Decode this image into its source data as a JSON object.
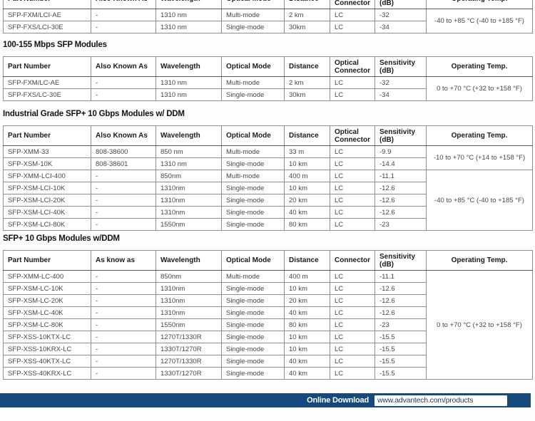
{
  "columns": {
    "widths": [
      123,
      91,
      92,
      88,
      64,
      63,
      72,
      149
    ]
  },
  "sections": [
    {
      "heading": null,
      "headers": [
        "Part Number",
        "Also Known As",
        "Wavelength",
        "Optical Mode",
        "Distance",
        "Optical\nConnector",
        "Sensitivity\n(dB)",
        "Operating Temp."
      ],
      "rows": [
        {
          "cells": [
            "SFP-FXM/LCI-AE",
            "-",
            "1310 nm",
            "Multi-mode",
            "2 km",
            "LC",
            "-32"
          ],
          "temp": "-40 to +85 °C (-40 to +185 °F)",
          "temp_span": 2
        },
        {
          "cells": [
            "SFP-FXS/LCI-30E",
            "-",
            "1310 nm",
            "Single-mode",
            "30km",
            "LC",
            "-34"
          ]
        }
      ]
    },
    {
      "heading": "100-155 Mbps SFP Modules",
      "headers": [
        "Part Number",
        "Also Known As",
        "Wavelength",
        "Optical Mode",
        "Distance",
        "Optical\nConnector",
        "Sensitivity\n(dB)",
        "Operating Temp."
      ],
      "rows": [
        {
          "cells": [
            "SFP-FXM/LC-AE",
            "-",
            "1310 nm",
            "Multi-mode",
            "2 km",
            "LC",
            "-32"
          ],
          "temp": "0 to +70 °C (+32 to +158 °F)",
          "temp_span": 2
        },
        {
          "cells": [
            "SFP-FXS/LC-30E",
            "-",
            "1310 nm",
            "Single-mode",
            "30km",
            "LC",
            "-34"
          ]
        }
      ]
    },
    {
      "heading": "Industrial Grade SFP+ 10 Gbps Modules w/ DDM",
      "headers": [
        "Part Number",
        "Also Known As",
        "Wavelength",
        "Optical Mode",
        "Distance",
        "Optical\nConnector",
        "Sensitivity\n(dB)",
        "Operating Temp."
      ],
      "rows": [
        {
          "cells": [
            "SFP-XMM-33",
            "808-38600",
            "850 nm",
            "Multi-mode",
            "33 m",
            "LC",
            "-9.9"
          ],
          "temp": "-10 to +70 °C (+14 to +158 °F)",
          "temp_span": 2
        },
        {
          "cells": [
            "SFP-XSM-10K",
            "808-38601",
            "1310 nm",
            "Single-mode",
            "10 km",
            "LC",
            "-14.4"
          ]
        },
        {
          "cells": [
            "SFP-XMM-LCI-400",
            "-",
            "850nm",
            "Multi-mode",
            "400 m",
            "LC",
            "-11.1"
          ],
          "temp": "-40 to +85 °C (-40 to +185 °F)",
          "temp_span": 5
        },
        {
          "cells": [
            "SFP-XSM-LCI-10K",
            "-",
            "1310nm",
            "Single-mode",
            "10 km",
            "LC",
            "-12.6"
          ]
        },
        {
          "cells": [
            "SFP-XSM-LCI-20K",
            "-",
            "1310nm",
            "Single-mode",
            "20 km",
            "LC",
            "-12.6"
          ]
        },
        {
          "cells": [
            "SFP-XSM-LCI-40K",
            "-",
            "1310nm",
            "Single-mode",
            "40 km",
            "LC",
            "-12.6"
          ]
        },
        {
          "cells": [
            "SFP-XSM-LCI-80K",
            "-",
            "1550nm",
            "Single-mode",
            "80 km",
            "LC",
            "-23"
          ]
        }
      ]
    },
    {
      "heading": "SFP+ 10 Gbps Modules w/DDM",
      "headers": [
        "Part Number",
        "As know as",
        "Wavelength",
        "Optical Mode",
        "Distance",
        "Connector",
        "Sensitivity\n(dB)",
        "Operating Temp."
      ],
      "rows": [
        {
          "cells": [
            "SFP-XMM-LC-400",
            "-",
            "850nm",
            "Multi-mode",
            "400 m",
            "LC",
            "-11.1"
          ],
          "temp": "0 to +70 °C (+32 to +158 °F)",
          "temp_span": 9
        },
        {
          "cells": [
            "SFP-XSM-LC-10K",
            "-",
            "1310nm",
            "Single-mode",
            "10 km",
            "LC",
            "-12.6"
          ]
        },
        {
          "cells": [
            "SFP-XSM-LC-20K",
            "-",
            "1310nm",
            "Single-mode",
            "20 km",
            "LC",
            "-12.6"
          ]
        },
        {
          "cells": [
            "SFP-XSM-LC-40K",
            "-",
            "1310nm",
            "Single-mode",
            "40 km",
            "LC",
            "-12.6"
          ]
        },
        {
          "cells": [
            "SFP-XSM-LC-80K",
            "-",
            "1550nm",
            "Single-mode",
            "80 km",
            "LC",
            "-23"
          ]
        },
        {
          "cells": [
            "SFP-XSS-10KTX-LC",
            "-",
            "1270T/1330R",
            "Single-mode",
            "10 km",
            "LC",
            "-15.5"
          ]
        },
        {
          "cells": [
            "SFP-XSS-10KRX-LC",
            "-",
            "1330T/1270R",
            "Single-mode",
            "10 km",
            "LC",
            "-15.5"
          ]
        },
        {
          "cells": [
            "SFP-XSS-40KTX-LC",
            "-",
            "1270T/1330R",
            "Single-mode",
            "40 km",
            "LC",
            "-15.5"
          ]
        },
        {
          "cells": [
            "SFP-XSS-40KRX-LC",
            "-",
            "1330T/1270R",
            "Single-mode",
            "40 km",
            "LC",
            "-15.5"
          ]
        }
      ]
    }
  ],
  "footer": {
    "label": "Online Download",
    "url": "www.advantech.com/products",
    "bar_color": "#174a7c"
  }
}
